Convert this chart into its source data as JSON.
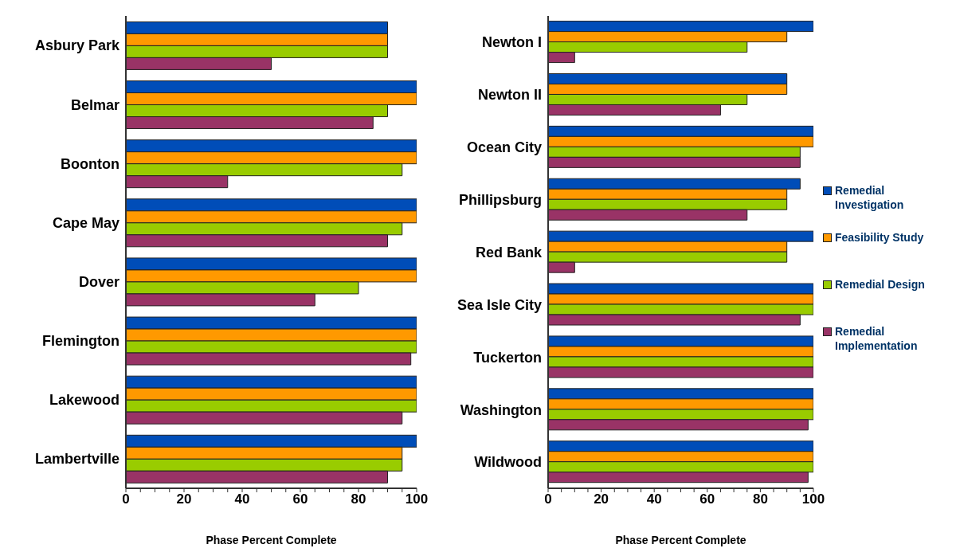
{
  "chart_data": [
    {
      "type": "bar",
      "orientation": "horizontal",
      "xlabel": "Phase Percent Complete",
      "categories": [
        "Asbury Park",
        "Belmar",
        "Boonton",
        "Cape May",
        "Dover",
        "Flemington",
        "Lakewood",
        "Lambertville"
      ],
      "series": [
        {
          "color": "#004db8",
          "values": [
            90,
            100,
            100,
            100,
            100,
            100,
            100,
            100
          ]
        },
        {
          "color": "#ff9900",
          "values": [
            90,
            100,
            100,
            100,
            100,
            100,
            100,
            95
          ]
        },
        {
          "color": "#99cc00",
          "values": [
            90,
            90,
            95,
            95,
            80,
            100,
            100,
            95
          ]
        },
        {
          "color": "#993366",
          "values": [
            50,
            85,
            35,
            90,
            65,
            98,
            95,
            90
          ]
        }
      ],
      "xlim": [
        0,
        100
      ],
      "xticks": [
        0,
        {
          "value": 5,
          "label": null
        },
        {
          "value": 10,
          "label": null
        },
        {
          "value": 15,
          "label": null
        },
        20,
        {
          "value": 25,
          "label": null
        },
        {
          "value": 30,
          "label": null
        },
        {
          "value": 35,
          "label": null
        },
        40,
        {
          "value": 45,
          "label": null
        },
        {
          "value": 50,
          "label": null
        },
        {
          "value": 55,
          "label": null
        },
        60,
        {
          "value": 65,
          "label": null
        },
        {
          "value": 70,
          "label": null
        },
        {
          "value": 75,
          "label": null
        },
        80,
        {
          "value": 85,
          "label": null
        },
        {
          "value": 90,
          "label": null
        },
        {
          "value": 95,
          "label": null
        },
        100
      ],
      "grid": false,
      "legend": false
    },
    {
      "type": "bar",
      "orientation": "horizontal",
      "xlabel": "Phase Percent Complete",
      "categories": [
        "Newton I",
        "Newton II",
        "Ocean City",
        "Phillipsburg",
        "Red Bank",
        "Sea Isle City",
        "Tuckerton",
        "Washington",
        "Wildwood"
      ],
      "series": [
        {
          "name": "Remedial Investigation",
          "color": "#004db8",
          "values": [
            100,
            90,
            100,
            95,
            100,
            100,
            100,
            100,
            100
          ]
        },
        {
          "name": "Feasibility Study",
          "color": "#ff9900",
          "values": [
            90,
            90,
            100,
            90,
            90,
            100,
            100,
            100,
            100
          ]
        },
        {
          "name": "Remedial Design",
          "color": "#99cc00",
          "values": [
            75,
            75,
            95,
            90,
            90,
            100,
            100,
            100,
            100
          ]
        },
        {
          "name": "Remedial Implementation",
          "color": "#993366",
          "values": [
            10,
            65,
            95,
            75,
            10,
            95,
            100,
            98,
            98
          ]
        }
      ],
      "xlim": [
        0,
        100
      ],
      "xticks": [
        0,
        {
          "value": 5,
          "label": null
        },
        {
          "value": 10,
          "label": null
        },
        {
          "value": 15,
          "label": null
        },
        20,
        {
          "value": 25,
          "label": null
        },
        {
          "value": 30,
          "label": null
        },
        {
          "value": 35,
          "label": null
        },
        40,
        {
          "value": 45,
          "label": null
        },
        {
          "value": 50,
          "label": null
        },
        {
          "value": 55,
          "label": null
        },
        60,
        {
          "value": 65,
          "label": null
        },
        {
          "value": 70,
          "label": null
        },
        {
          "value": 75,
          "label": null
        },
        80,
        {
          "value": 85,
          "label": null
        },
        {
          "value": 90,
          "label": null
        },
        {
          "value": 95,
          "label": null
        },
        100
      ],
      "grid": false,
      "legend": "right"
    }
  ]
}
